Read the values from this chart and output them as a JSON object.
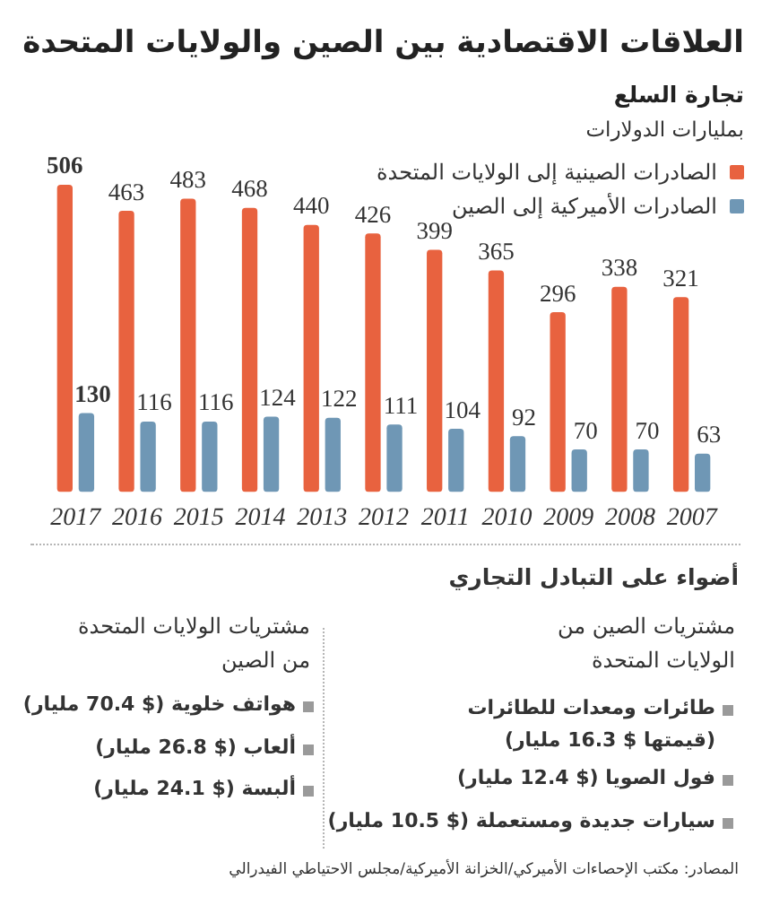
{
  "chart_data": {
    "type": "bar",
    "title": "العلاقات الاقتصادية بين الصين والولايات المتحدة",
    "subtitle": "تجارة السلع",
    "ylabel": "بمليارات الدولارات",
    "categories": [
      "2017",
      "2016",
      "2015",
      "2014",
      "2013",
      "2012",
      "2011",
      "2010",
      "2009",
      "2008",
      "2007"
    ],
    "series": [
      {
        "name": "الصادرات الصينية إلى الولايات المتحدة",
        "color": "#e8623f",
        "values": [
          506,
          463,
          483,
          468,
          440,
          426,
          399,
          365,
          296,
          338,
          321
        ]
      },
      {
        "name": "الصادرات الأميركية إلى الصين",
        "color": "#6f97b5",
        "values": [
          130,
          116,
          116,
          124,
          122,
          111,
          104,
          92,
          70,
          70,
          63
        ]
      }
    ],
    "data_labels": true,
    "legend": "top right",
    "annotations": [
      "أضواء على التبادل التجاري",
      "مشتريات الصين من الولايات المتحدة",
      "طائرات ومعدات للطائرات (قيمتها $ 16.3 مليار)",
      "فول الصويا ($ 12.4 مليار)",
      "سيارات جديدة ومستعملة ($ 10.5 مليار)",
      "مشتريات الولايات المتحدة من الصين",
      "هواتف خلوية ($ 70.4 مليار)",
      "ألعاب ($ 26.8 مليار)",
      "ألبسة ($ 24.1 مليار)",
      "المصادر: مكتب الإحصاءات الأميركي/الخزانة الأميركية/مجلس الاحتياطي الفيدرالي"
    ]
  }
}
